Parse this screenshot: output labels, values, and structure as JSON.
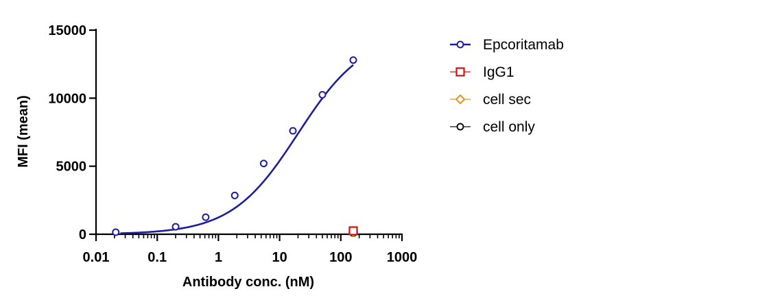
{
  "chart_data": {
    "type": "scatter",
    "title": "",
    "xlabel": "Antibody conc. (nM)",
    "ylabel": "MFI (mean)",
    "x_scale": "log",
    "xlim": [
      0.01,
      1000
    ],
    "ylim": [
      0,
      15000
    ],
    "x_ticks": [
      0.01,
      0.1,
      1,
      10,
      100,
      1000
    ],
    "x_tick_labels": [
      "0.01",
      "0.1",
      "1",
      "10",
      "100",
      "1000"
    ],
    "y_ticks": [
      0,
      5000,
      10000,
      15000
    ],
    "y_tick_labels": [
      "0",
      "5000",
      "10000",
      "15000"
    ],
    "grid": false,
    "legend_position": "right",
    "series": [
      {
        "name": "Epcoritamab",
        "color": "#1c1c9e",
        "marker": "circle-open",
        "fit_curve": "sigmoidal",
        "x": [
          0.021,
          0.2,
          0.62,
          1.85,
          5.5,
          16.5,
          50,
          160
        ],
        "y": [
          150,
          550,
          1250,
          2850,
          5200,
          7600,
          10250,
          12800
        ]
      },
      {
        "name": "IgG1",
        "color": "#cc1111",
        "marker": "square-open",
        "x": [
          160
        ],
        "y": [
          250
        ]
      },
      {
        "name": "cell sec",
        "color": "#e8901a",
        "marker": "diamond-open",
        "x": [
          160
        ],
        "y": [
          150
        ]
      },
      {
        "name": "cell only",
        "color": "#111111",
        "marker": "circle-open",
        "x": [
          160
        ],
        "y": [
          80
        ]
      }
    ]
  }
}
